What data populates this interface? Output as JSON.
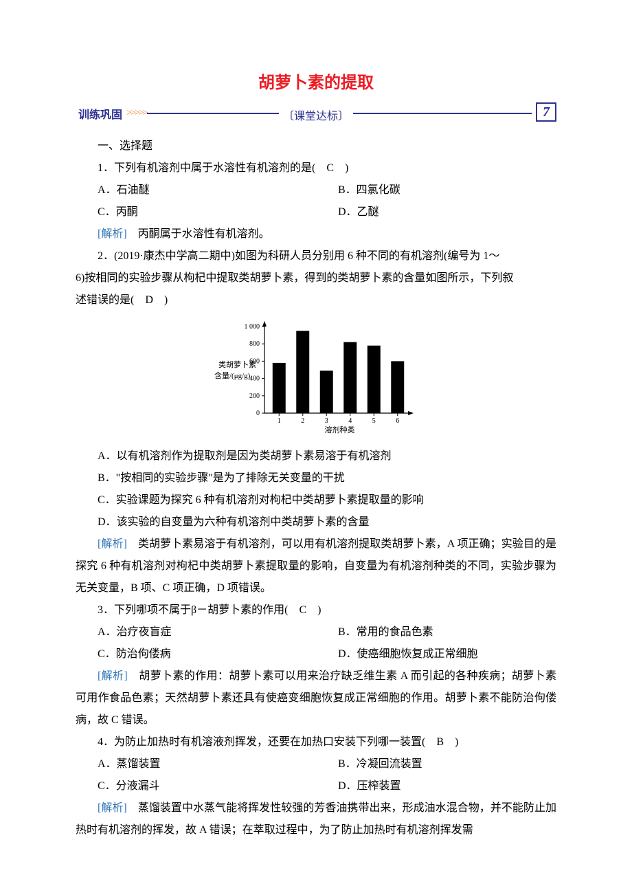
{
  "title": "胡萝卜素的提取",
  "banner": {
    "left_label": "训练巩固",
    "left_arrows": ">>>>>",
    "center_label": "〔课堂达标〕",
    "right_number": "7"
  },
  "section_heading": "一、选择题",
  "q1": {
    "stem": "1．下列有机溶剂中属于水溶性有机溶剂的是(　C　)",
    "optA": "A．石油醚",
    "optB": "B．四氯化碳",
    "optC": "C．丙酮",
    "optD": "D．乙醚",
    "analysis_label": "[解析]",
    "analysis_text": "　丙酮属于水溶性有机溶剂。"
  },
  "q2": {
    "stem_line1": "2．(2019·康杰中学高二期中)如图为科研人员分别用 6 种不同的有机溶剂(编号为 1～",
    "stem_line2": "6)按相同的实验步骤从枸杞中提取类胡萝卜素，得到的类胡萝卜素的含量如图所示，下列叙",
    "stem_line3": "述错误的是(　D　)",
    "chart": {
      "type": "bar",
      "categories": [
        "1",
        "2",
        "3",
        "4",
        "5",
        "6"
      ],
      "values": [
        580,
        950,
        490,
        820,
        780,
        600
      ],
      "ylim": [
        0,
        1000
      ],
      "yticks": [
        0,
        200,
        400,
        600,
        800,
        1000
      ],
      "ytick_labels": [
        "0",
        "200",
        "400",
        "600",
        "800",
        "1 000"
      ],
      "xlabel": "溶剂种类",
      "ylabel_line1": "类胡萝卜素",
      "ylabel_line2": "含量/(μg/g)",
      "bar_color": "#000000",
      "axis_color": "#000000",
      "text_color": "#000000",
      "bg_color": "#ffffff",
      "label_fontsize": 11,
      "tick_fontsize": 10,
      "bar_width_ratio": 0.55
    },
    "optA": "A．以有机溶剂作为提取剂是因为类胡萝卜素易溶于有机溶剂",
    "optB": "B．\"按相同的实验步骤\"是为了排除无关变量的干扰",
    "optC": "C．实验课题为探究 6 种有机溶剂对枸杞中类胡萝卜素提取量的影响",
    "optD": "D．该实验的自变量为六种有机溶剂中类胡萝卜素的含量",
    "analysis_label": "[解析]",
    "analysis_text": "　类胡萝卜素易溶于有机溶剂，可以用有机溶剂提取类胡萝卜素，A 项正确；实验目的是探究 6 种有机溶剂对枸杞中类胡萝卜素提取量的影响，自变量为有机溶剂种类的不同，实验步骤为无关变量，B 项、C 项正确，D 项错误。"
  },
  "q3": {
    "stem": "3．下列哪项不属于β－胡萝卜素的作用(　C　)",
    "optA": "A．治疗夜盲症",
    "optB": "B．常用的食品色素",
    "optC": "C．防治佝偻病",
    "optD": "D．使癌细胞恢复成正常细胞",
    "analysis_label": "[解析]",
    "analysis_text": "　胡萝卜素的作用：胡萝卜素可以用来治疗缺乏维生素 A 而引起的各种疾病；胡萝卜素可用作食品色素；天然胡萝卜素还具有使癌变细胞恢复成正常细胞的作用。胡萝卜素不能防治佝偻病，故 C 错误。"
  },
  "q4": {
    "stem": "4．为防止加热时有机溶液剂挥发，还要在加热口安装下列哪一装置(　B　)",
    "optA": "A．蒸馏装置",
    "optB": "B．冷凝回流装置",
    "optC": "C．分液漏斗",
    "optD": "D．压榨装置",
    "analysis_label": "[解析]",
    "analysis_text": "　蒸馏装置中水蒸气能将挥发性较强的芳香油携带出来，形成油水混合物，并不能防止加热时有机溶剂的挥发，故 A 错误；在萃取过程中，为了防止加热时有机溶剂挥发需"
  }
}
